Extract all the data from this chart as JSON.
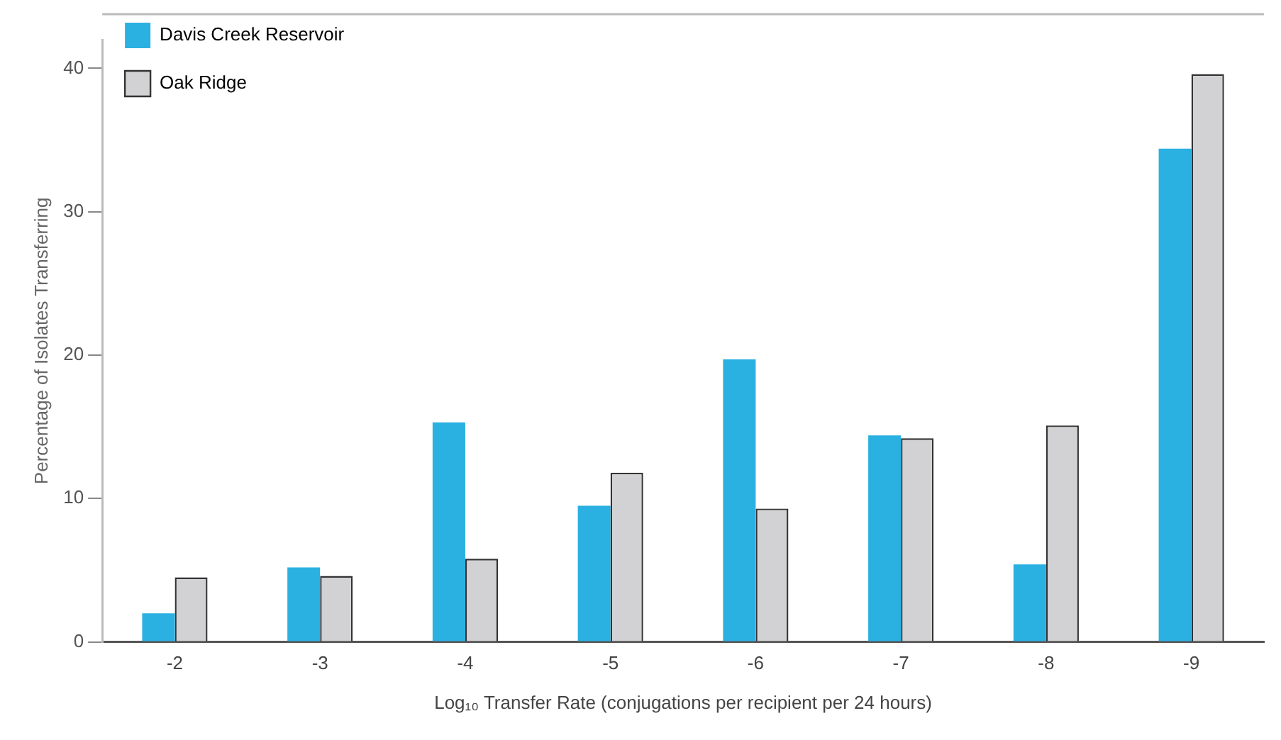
{
  "chart_data": {
    "type": "bar",
    "xlabel": "Log₁₀ Transfer Rate (conjugations per recipient per 24 hours)",
    "ylabel": "Percentage of Isolates Transferring",
    "categories": [
      "-2",
      "-3",
      "-4",
      "-5",
      "-6",
      "-7",
      "-8",
      "-9"
    ],
    "series": [
      {
        "name": "Davis Creek Reservoir",
        "color": "#2bb0e2",
        "values": [
          2.0,
          5.2,
          15.3,
          9.5,
          19.7,
          14.4,
          5.4,
          34.4
        ]
      },
      {
        "name": "Oak Ridge",
        "color": "#d2d2d4",
        "values": [
          4.5,
          4.6,
          5.8,
          11.8,
          9.3,
          14.2,
          15.1,
          39.6
        ]
      }
    ],
    "ylim": [
      0,
      42
    ],
    "yticks": [
      0,
      10,
      20,
      30,
      40
    ],
    "grid": false,
    "legend": "top left"
  }
}
